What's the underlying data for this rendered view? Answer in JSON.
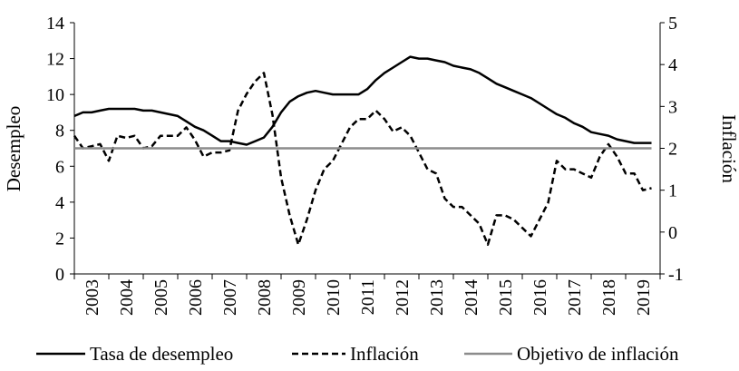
{
  "chart_data": {
    "type": "line",
    "title": "",
    "xlabel": "",
    "ylabel": "Desempleo",
    "y2label": "Inflación",
    "ylim": [
      0,
      14
    ],
    "y2lim": [
      -1,
      5
    ],
    "yticks": [
      0,
      2,
      4,
      6,
      8,
      10,
      12,
      14
    ],
    "y2ticks": [
      -1,
      0,
      1,
      2,
      3,
      4,
      5
    ],
    "xlim": [
      2003,
      2020
    ],
    "xticks": [
      "2003",
      "2004",
      "2005",
      "2006",
      "2007",
      "2008",
      "2009",
      "2010",
      "2011",
      "2012",
      "2013",
      "2014",
      "2015",
      "2016",
      "2017",
      "2018",
      "2019"
    ],
    "grid": false,
    "legend_position": "bottom",
    "series": [
      {
        "name": "Tasa de desempleo",
        "axis": "left",
        "style": "solid",
        "color": "#000000",
        "x": [
          2003.0,
          2003.25,
          2003.5,
          2003.75,
          2004.0,
          2004.25,
          2004.5,
          2004.75,
          2005.0,
          2005.25,
          2005.5,
          2005.75,
          2006.0,
          2006.25,
          2006.5,
          2006.75,
          2007.0,
          2007.25,
          2007.5,
          2007.75,
          2008.0,
          2008.25,
          2008.5,
          2008.75,
          2009.0,
          2009.25,
          2009.5,
          2009.75,
          2010.0,
          2010.25,
          2010.5,
          2010.75,
          2011.0,
          2011.25,
          2011.5,
          2011.75,
          2012.0,
          2012.25,
          2012.5,
          2012.75,
          2013.0,
          2013.25,
          2013.5,
          2013.75,
          2014.0,
          2014.25,
          2014.5,
          2014.75,
          2015.0,
          2015.25,
          2015.5,
          2015.75,
          2016.0,
          2016.25,
          2016.5,
          2016.75,
          2017.0,
          2017.25,
          2017.5,
          2017.75,
          2018.0,
          2018.25,
          2018.5,
          2018.75,
          2019.0,
          2019.25,
          2019.5,
          2019.75
        ],
        "values": [
          8.8,
          9.0,
          9.0,
          9.1,
          9.2,
          9.2,
          9.2,
          9.2,
          9.1,
          9.1,
          9.0,
          8.9,
          8.8,
          8.5,
          8.2,
          8.0,
          7.7,
          7.4,
          7.4,
          7.3,
          7.2,
          7.4,
          7.6,
          8.2,
          9.0,
          9.6,
          9.9,
          10.1,
          10.2,
          10.1,
          10.0,
          10.0,
          10.0,
          10.0,
          10.3,
          10.8,
          11.2,
          11.5,
          11.8,
          12.1,
          12.0,
          12.0,
          11.9,
          11.8,
          11.6,
          11.5,
          11.4,
          11.2,
          10.9,
          10.6,
          10.4,
          10.2,
          10.0,
          9.8,
          9.5,
          9.2,
          8.9,
          8.7,
          8.4,
          8.2,
          7.9,
          7.8,
          7.7,
          7.5,
          7.4,
          7.3,
          7.3,
          7.3
        ]
      },
      {
        "name": "Inflación",
        "axis": "right",
        "style": "dashed",
        "color": "#000000",
        "x": [
          2003.0,
          2003.25,
          2003.5,
          2003.75,
          2004.0,
          2004.25,
          2004.5,
          2004.75,
          2005.0,
          2005.25,
          2005.5,
          2005.75,
          2006.0,
          2006.25,
          2006.5,
          2006.75,
          2007.0,
          2007.25,
          2007.5,
          2007.75,
          2008.0,
          2008.25,
          2008.5,
          2008.75,
          2009.0,
          2009.25,
          2009.5,
          2009.75,
          2010.0,
          2010.25,
          2010.5,
          2010.75,
          2011.0,
          2011.25,
          2011.5,
          2011.75,
          2012.0,
          2012.25,
          2012.5,
          2012.75,
          2013.0,
          2013.25,
          2013.5,
          2013.75,
          2014.0,
          2014.25,
          2014.5,
          2014.75,
          2015.0,
          2015.25,
          2015.5,
          2015.75,
          2016.0,
          2016.25,
          2016.5,
          2016.75,
          2017.0,
          2017.25,
          2017.5,
          2017.75,
          2018.0,
          2018.25,
          2018.5,
          2018.75,
          2019.0,
          2019.25,
          2019.5,
          2019.75
        ],
        "values": [
          2.3,
          2.0,
          2.05,
          2.1,
          1.7,
          2.3,
          2.25,
          2.3,
          2.0,
          2.05,
          2.3,
          2.3,
          2.3,
          2.5,
          2.2,
          1.8,
          1.9,
          1.9,
          1.95,
          2.9,
          3.3,
          3.6,
          3.8,
          2.8,
          1.3,
          0.4,
          -0.3,
          0.3,
          1.0,
          1.5,
          1.7,
          2.1,
          2.5,
          2.7,
          2.7,
          2.9,
          2.7,
          2.4,
          2.5,
          2.3,
          1.9,
          1.5,
          1.4,
          0.8,
          0.6,
          0.6,
          0.4,
          0.2,
          -0.3,
          0.4,
          0.4,
          0.3,
          0.1,
          -0.1,
          0.3,
          0.7,
          1.7,
          1.5,
          1.5,
          1.4,
          1.3,
          1.8,
          2.1,
          1.8,
          1.4,
          1.4,
          1.0,
          1.05
        ]
      },
      {
        "name": "Objetivo de inflación",
        "axis": "right",
        "style": "solid",
        "color": "#8c8c8c",
        "x": [
          2003.0,
          2019.75
        ],
        "values": [
          2.0,
          2.0
        ]
      }
    ]
  }
}
